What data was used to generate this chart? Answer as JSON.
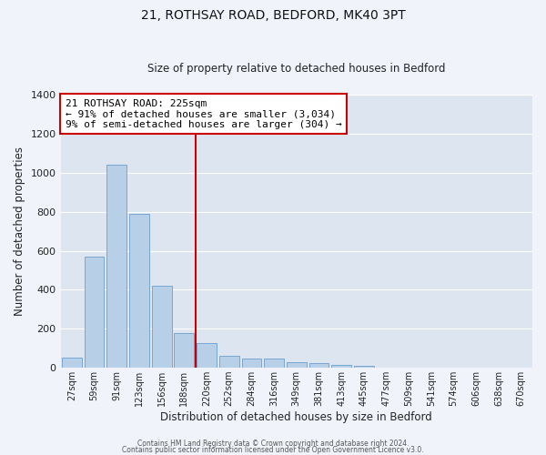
{
  "title": "21, ROTHSAY ROAD, BEDFORD, MK40 3PT",
  "subtitle": "Size of property relative to detached houses in Bedford",
  "xlabel": "Distribution of detached houses by size in Bedford",
  "ylabel": "Number of detached properties",
  "bar_labels": [
    "27sqm",
    "59sqm",
    "91sqm",
    "123sqm",
    "156sqm",
    "188sqm",
    "220sqm",
    "252sqm",
    "284sqm",
    "316sqm",
    "349sqm",
    "381sqm",
    "413sqm",
    "445sqm",
    "477sqm",
    "509sqm",
    "541sqm",
    "574sqm",
    "606sqm",
    "638sqm",
    "670sqm"
  ],
  "bar_values": [
    50,
    570,
    1040,
    790,
    420,
    180,
    125,
    63,
    48,
    48,
    30,
    22,
    15,
    8,
    0,
    0,
    0,
    0,
    0,
    0,
    0
  ],
  "bar_color": "#b8cfe8",
  "bar_edge_color": "#6a9fd0",
  "property_line_color": "#cc0000",
  "annotation_text": "21 ROTHSAY ROAD: 225sqm\n← 91% of detached houses are smaller (3,034)\n9% of semi-detached houses are larger (304) →",
  "annotation_box_color": "#cc0000",
  "ylim": [
    0,
    1400
  ],
  "yticks": [
    0,
    200,
    400,
    600,
    800,
    1000,
    1200,
    1400
  ],
  "bg_color": "#dde6f0",
  "grid_color": "#ffffff",
  "fig_bg_color": "#f0f4fa",
  "footer_line1": "Contains HM Land Registry data © Crown copyright and database right 2024.",
  "footer_line2": "Contains public sector information licensed under the Open Government Licence v3.0."
}
